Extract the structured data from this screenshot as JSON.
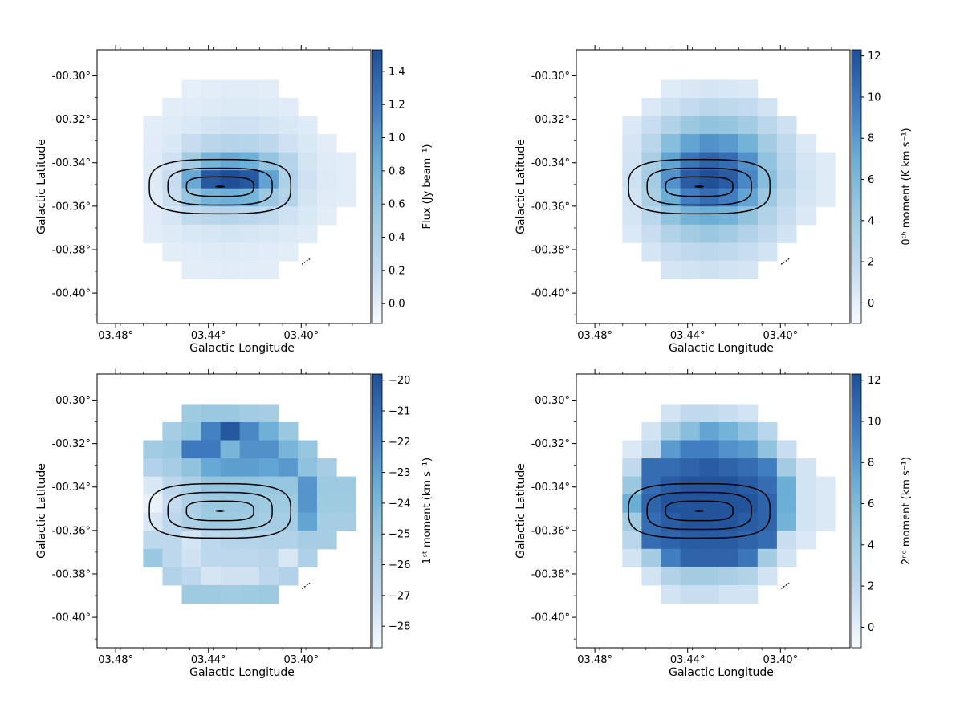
{
  "figure": {
    "colormap": [
      "#f7fbff",
      "#c6dbef",
      "#9ecae1",
      "#6baed6",
      "#3f7bc0",
      "#1f4e96"
    ],
    "contour_color": "#000000"
  },
  "chart_data": [
    {
      "type": "heatmap",
      "title": "",
      "xlabel": "Galactic Longitude",
      "ylabel": "Galactic Latitude",
      "xlim": [
        3.488,
        3.37
      ],
      "ylim": [
        -0.414,
        -0.288
      ],
      "xticks": [
        3.48,
        3.44,
        3.4
      ],
      "xtick_labels": [
        "03.48°",
        "03.44°",
        "03.40°"
      ],
      "yticks": [
        -0.3,
        -0.32,
        -0.34,
        -0.36,
        -0.38,
        -0.4
      ],
      "ytick_labels": [
        "-00.30°",
        "-00.32°",
        "-00.34°",
        "-00.36°",
        "-00.38°",
        "-00.40°"
      ],
      "colorbar": {
        "label": "Flux (Jy beam⁻¹)",
        "range": [
          -0.12,
          1.53
        ],
        "ticks": [
          0.0,
          0.2,
          0.4,
          0.6,
          0.8,
          1.0,
          1.2,
          1.4
        ],
        "tick_labels": [
          "0.0",
          "0.2",
          "0.4",
          "0.6",
          "0.8",
          "1.0",
          "1.2",
          "1.4"
        ]
      },
      "pixel_grid": {
        "rows": 11,
        "cols": 11,
        "row0_lat": -0.306,
        "col0_lon": 3.464,
        "step": 0.00833
      },
      "values": [
        [
          null,
          null,
          0.0,
          0.02,
          0.03,
          0.03,
          0.02,
          null,
          null,
          null,
          null
        ],
        [
          null,
          0.02,
          0.03,
          0.05,
          0.06,
          0.06,
          0.05,
          0.03,
          null,
          null,
          null
        ],
        [
          0.02,
          0.04,
          0.08,
          0.12,
          0.15,
          0.15,
          0.12,
          0.08,
          0.04,
          null,
          null
        ],
        [
          0.03,
          0.08,
          0.2,
          0.3,
          0.35,
          0.33,
          0.28,
          0.15,
          0.08,
          0.02,
          null
        ],
        [
          0.04,
          0.15,
          0.5,
          0.8,
          0.9,
          0.85,
          0.6,
          0.35,
          0.12,
          0.04,
          0.02
        ],
        [
          0.05,
          0.2,
          0.9,
          1.45,
          1.53,
          1.45,
          0.95,
          0.4,
          0.15,
          0.05,
          0.02
        ],
        [
          0.04,
          0.18,
          0.6,
          0.8,
          0.85,
          0.8,
          0.55,
          0.35,
          0.12,
          0.04,
          0.02
        ],
        [
          0.03,
          0.1,
          0.25,
          0.3,
          0.35,
          0.3,
          0.25,
          0.15,
          0.08,
          0.02,
          null
        ],
        [
          0.02,
          0.05,
          0.08,
          0.1,
          0.12,
          0.1,
          0.08,
          0.06,
          0.04,
          null,
          null
        ],
        [
          null,
          0.02,
          0.03,
          0.04,
          0.05,
          0.04,
          0.03,
          0.02,
          null,
          null,
          null
        ],
        [
          null,
          null,
          0.02,
          0.02,
          0.03,
          0.02,
          0.02,
          null,
          null,
          null,
          null
        ]
      ],
      "contours": [
        {
          "center": [
            3.435,
            -0.351
          ],
          "semi_axes": [
            0.0305,
            0.0125
          ]
        },
        {
          "center": [
            3.435,
            -0.351
          ],
          "semi_axes": [
            0.0225,
            0.0085
          ]
        },
        {
          "center": [
            3.435,
            -0.351
          ],
          "semi_axes": [
            0.0145,
            0.0045
          ]
        }
      ]
    },
    {
      "type": "heatmap",
      "title": "",
      "xlabel": "Galactic Longitude",
      "ylabel": "Galactic Latitude",
      "xlim": [
        3.488,
        3.37
      ],
      "ylim": [
        -0.414,
        -0.288
      ],
      "xticks": [
        3.48,
        3.44,
        3.4
      ],
      "xtick_labels": [
        "03.48°",
        "03.44°",
        "03.40°"
      ],
      "yticks": [
        -0.3,
        -0.32,
        -0.34,
        -0.36,
        -0.38,
        -0.4
      ],
      "ytick_labels": [
        "-00.30°",
        "-00.32°",
        "-00.34°",
        "-00.36°",
        "-00.38°",
        "-00.40°"
      ],
      "colorbar": {
        "label": "0ᵗʰ moment (K km s⁻¹)",
        "range": [
          -1.0,
          12.3
        ],
        "ticks": [
          0,
          2,
          4,
          6,
          8,
          10,
          12
        ],
        "tick_labels": [
          "0",
          "2",
          "4",
          "6",
          "8",
          "10",
          "12"
        ]
      },
      "pixel_grid": {
        "rows": 11,
        "cols": 11,
        "row0_lat": -0.306,
        "col0_lon": 3.464,
        "step": 0.00833
      },
      "values": [
        [
          null,
          null,
          0.3,
          0.6,
          0.8,
          0.7,
          0.5,
          null,
          null,
          null,
          null
        ],
        [
          null,
          0.5,
          1.2,
          1.8,
          2.3,
          2.2,
          1.8,
          1.0,
          null,
          null,
          null
        ],
        [
          0.5,
          1.5,
          3.0,
          4.5,
          5.0,
          4.8,
          4.0,
          2.5,
          1.2,
          null,
          null
        ],
        [
          0.8,
          2.5,
          5.5,
          7.5,
          8.5,
          8.0,
          6.5,
          4.0,
          2.0,
          0.5,
          null
        ],
        [
          1.0,
          3.5,
          7.5,
          10.0,
          11.0,
          10.5,
          8.5,
          5.0,
          2.5,
          0.8,
          0.3
        ],
        [
          1.2,
          4.0,
          8.5,
          11.5,
          12.2,
          11.5,
          9.0,
          5.5,
          2.8,
          1.0,
          0.3
        ],
        [
          1.0,
          3.5,
          7.0,
          9.5,
          10.5,
          9.5,
          7.5,
          4.5,
          2.2,
          0.8,
          0.3
        ],
        [
          0.8,
          2.5,
          5.0,
          6.5,
          7.0,
          6.5,
          5.0,
          3.0,
          1.5,
          0.5,
          null
        ],
        [
          0.5,
          1.5,
          3.0,
          4.0,
          4.5,
          4.0,
          3.0,
          2.0,
          1.0,
          null,
          null
        ],
        [
          null,
          0.8,
          1.5,
          2.0,
          2.3,
          2.0,
          1.5,
          1.0,
          null,
          null,
          null
        ],
        [
          null,
          null,
          0.8,
          1.0,
          1.2,
          1.0,
          0.8,
          null,
          null,
          null,
          null
        ]
      ],
      "contours": [
        {
          "center": [
            3.435,
            -0.351
          ],
          "semi_axes": [
            0.0305,
            0.0125
          ]
        },
        {
          "center": [
            3.435,
            -0.351
          ],
          "semi_axes": [
            0.0225,
            0.0085
          ]
        },
        {
          "center": [
            3.435,
            -0.351
          ],
          "semi_axes": [
            0.0145,
            0.0045
          ]
        }
      ]
    },
    {
      "type": "heatmap",
      "title": "",
      "xlabel": "Galactic Longitude",
      "ylabel": "Galactic Latitude",
      "xlim": [
        3.488,
        3.37
      ],
      "ylim": [
        -0.414,
        -0.288
      ],
      "xticks": [
        3.48,
        3.44,
        3.4
      ],
      "xtick_labels": [
        "03.48°",
        "03.44°",
        "03.40°"
      ],
      "yticks": [
        -0.3,
        -0.32,
        -0.34,
        -0.36,
        -0.38,
        -0.4
      ],
      "ytick_labels": [
        "-00.30°",
        "-00.32°",
        "-00.34°",
        "-00.36°",
        "-00.38°",
        "-00.40°"
      ],
      "colorbar": {
        "label": "1ˢᵗ moment (km s⁻¹)",
        "range": [
          -28.7,
          -19.8
        ],
        "ticks": [
          -20,
          -21,
          -22,
          -23,
          -24,
          -25,
          -26,
          -27,
          -28
        ],
        "tick_labels": [
          "−20",
          "−21",
          "−22",
          "−23",
          "−24",
          "−25",
          "−26",
          "−27",
          "−28"
        ]
      },
      "pixel_grid": {
        "rows": 11,
        "cols": 11,
        "row0_lat": -0.306,
        "col0_lon": 3.464,
        "step": 0.00833
      },
      "values": [
        [
          null,
          null,
          -25.2,
          -25.0,
          -25.0,
          -25.3,
          -25.5,
          null,
          null,
          null,
          null
        ],
        [
          null,
          -25.5,
          -24.8,
          -21.8,
          -20.2,
          -22.0,
          -23.5,
          -25.0,
          null,
          null,
          null
        ],
        [
          -25.3,
          -25.0,
          -21.5,
          -21.5,
          -23.8,
          -22.3,
          -22.3,
          -23.8,
          -24.9,
          null,
          null
        ],
        [
          -26.0,
          -25.5,
          -24.7,
          -23.2,
          -22.8,
          -22.8,
          -23.0,
          -22.6,
          -24.6,
          -25.5,
          null
        ],
        [
          -27.6,
          -26.5,
          -25.8,
          -24.8,
          -24.8,
          -24.8,
          -24.9,
          -24.9,
          -22.5,
          -25.1,
          -25.1
        ],
        [
          -28.2,
          -26.9,
          -25.8,
          -25.1,
          -25.0,
          -25.0,
          -25.2,
          -25.2,
          -22.5,
          -25.2,
          -25.2
        ],
        [
          -27.6,
          -26.5,
          -25.8,
          -25.2,
          -25.2,
          -25.2,
          -25.5,
          -25.5,
          -23.0,
          -25.5,
          -25.5
        ],
        [
          -26.5,
          -26.5,
          -27.4,
          -26.5,
          -26.2,
          -26.2,
          -26.0,
          -26.0,
          -25.5,
          -25.5,
          null
        ],
        [
          -25.0,
          -26.5,
          -27.3,
          -26.5,
          -26.5,
          -26.5,
          -26.3,
          -27.6,
          -25.9,
          null,
          null
        ],
        [
          null,
          -26.0,
          -26.5,
          -27.5,
          -27.3,
          -27.3,
          -26.5,
          -26.0,
          null,
          null,
          null
        ],
        [
          null,
          null,
          -25.2,
          -25.2,
          -25.3,
          -25.2,
          -25.1,
          null,
          null,
          null,
          null
        ]
      ],
      "contours": [
        {
          "center": [
            3.435,
            -0.351
          ],
          "semi_axes": [
            0.0305,
            0.0125
          ]
        },
        {
          "center": [
            3.435,
            -0.351
          ],
          "semi_axes": [
            0.0225,
            0.0085
          ]
        },
        {
          "center": [
            3.435,
            -0.351
          ],
          "semi_axes": [
            0.0145,
            0.0045
          ]
        }
      ]
    },
    {
      "type": "heatmap",
      "title": "",
      "xlabel": "Galactic Longitude",
      "ylabel": "Galactic Latitude",
      "xlim": [
        3.488,
        3.37
      ],
      "ylim": [
        -0.414,
        -0.288
      ],
      "xticks": [
        3.48,
        3.44,
        3.4
      ],
      "xtick_labels": [
        "03.48°",
        "03.44°",
        "03.40°"
      ],
      "yticks": [
        -0.3,
        -0.32,
        -0.34,
        -0.36,
        -0.38,
        -0.4
      ],
      "ytick_labels": [
        "-00.30°",
        "-00.32°",
        "-00.34°",
        "-00.36°",
        "-00.38°",
        "-00.40°"
      ],
      "colorbar": {
        "label": "2ⁿᵈ moment (km s⁻¹)",
        "range": [
          -1.0,
          12.3
        ],
        "ticks": [
          0,
          2,
          4,
          6,
          8,
          10,
          12
        ],
        "tick_labels": [
          "0",
          "2",
          "4",
          "6",
          "8",
          "10",
          "12"
        ]
      },
      "pixel_grid": {
        "rows": 11,
        "cols": 11,
        "row0_lat": -0.306,
        "col0_lon": 3.464,
        "step": 0.00833
      },
      "values": [
        [
          null,
          null,
          1.0,
          2.0,
          2.0,
          1.5,
          1.0,
          null,
          null,
          null,
          null
        ],
        [
          null,
          1.0,
          3.5,
          5.5,
          7.5,
          6.5,
          5.0,
          2.5,
          null,
          null,
          null
        ],
        [
          0.5,
          2.0,
          8.0,
          9.5,
          9.5,
          8.5,
          8.0,
          5.0,
          1.5,
          null,
          null
        ],
        [
          2.0,
          10.5,
          10.5,
          11.0,
          11.5,
          11.0,
          10.5,
          9.5,
          4.0,
          1.0,
          null
        ],
        [
          4.5,
          10.5,
          11.5,
          12.0,
          12.0,
          12.0,
          11.5,
          10.5,
          7.0,
          1.0,
          0.5
        ],
        [
          7.0,
          11.0,
          12.0,
          12.0,
          12.0,
          12.0,
          12.0,
          11.0,
          7.0,
          1.0,
          0.5
        ],
        [
          4.0,
          10.5,
          11.5,
          12.0,
          12.0,
          12.0,
          11.5,
          11.0,
          6.5,
          1.0,
          0.5
        ],
        [
          2.5,
          10.5,
          11.0,
          11.5,
          11.5,
          11.5,
          11.0,
          10.5,
          1.5,
          0.5,
          null
        ],
        [
          1.0,
          4.0,
          9.5,
          11.0,
          11.0,
          11.0,
          10.0,
          4.0,
          1.0,
          null,
          null
        ],
        [
          null,
          1.0,
          3.0,
          4.0,
          4.0,
          3.5,
          3.0,
          1.0,
          null,
          null,
          null
        ],
        [
          null,
          null,
          1.0,
          1.5,
          1.5,
          1.0,
          1.0,
          null,
          null,
          null,
          null
        ]
      ],
      "contours": [
        {
          "center": [
            3.435,
            -0.351
          ],
          "semi_axes": [
            0.0305,
            0.0125
          ]
        },
        {
          "center": [
            3.435,
            -0.351
          ],
          "semi_axes": [
            0.0225,
            0.0085
          ]
        },
        {
          "center": [
            3.435,
            -0.351
          ],
          "semi_axes": [
            0.0145,
            0.0045
          ]
        }
      ]
    }
  ]
}
